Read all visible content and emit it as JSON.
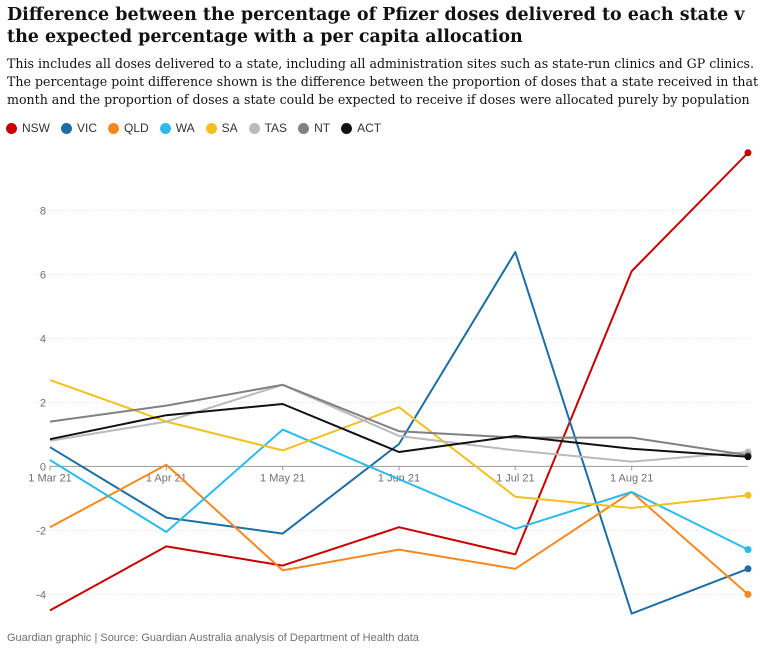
{
  "header": {
    "title": "Difference between the percentage of Pfizer doses delivered to each state v the expected percentage with a per capita allocation",
    "subtitle": "This includes all doses delivered to a state, including all administration sites such as state-run clinics and GP clinics. The percentage point difference shown is the difference between the proportion of doses that a state received in that month and the proportion of doses a state could be expected to receive if doses were allocated purely by population"
  },
  "footer": {
    "source": "Guardian graphic | Source: Guardian Australia analysis of Department of Health data"
  },
  "chart_data": {
    "type": "line",
    "x": [
      "1 Mar 21",
      "1 Apr 21",
      "1 May 21",
      "1 Jun 21",
      "1 Jul 21",
      "1 Aug 21",
      "1 Sep 21"
    ],
    "x_tick_labels": [
      "1 Mar 21",
      "1 Apr 21",
      "1 May 21",
      "1 Jun 21",
      "1 Jul 21",
      "1 Aug 21"
    ],
    "y_ticks": [
      -4,
      -2,
      0,
      2,
      4,
      6,
      8
    ],
    "ylim": [
      -4.8,
      10.2
    ],
    "grid": true,
    "legend_position": "top-left",
    "series": [
      {
        "name": "NSW",
        "color": "#c70000",
        "values": [
          -4.5,
          -2.5,
          -3.1,
          -1.9,
          -2.75,
          6.1,
          9.8
        ]
      },
      {
        "name": "VIC",
        "color": "#1c6ea4",
        "values": [
          0.6,
          -1.6,
          -2.1,
          0.7,
          6.7,
          -4.6,
          -3.2
        ]
      },
      {
        "name": "QLD",
        "color": "#f5891f",
        "values": [
          -1.9,
          0.05,
          -3.25,
          -2.6,
          -3.2,
          -0.8,
          -4.0
        ]
      },
      {
        "name": "WA",
        "color": "#2abbec",
        "values": [
          0.2,
          -2.05,
          1.15,
          -0.4,
          -1.95,
          -0.8,
          -2.6
        ]
      },
      {
        "name": "SA",
        "color": "#f2c11d",
        "values": [
          2.7,
          1.4,
          0.5,
          1.85,
          -0.95,
          -1.3,
          -0.9
        ]
      },
      {
        "name": "TAS",
        "color": "#bababa",
        "values": [
          0.8,
          1.4,
          2.55,
          0.95,
          0.5,
          0.15,
          0.45
        ]
      },
      {
        "name": "NT",
        "color": "#808080",
        "values": [
          1.4,
          1.9,
          2.55,
          1.1,
          0.9,
          0.9,
          0.35
        ]
      },
      {
        "name": "ACT",
        "color": "#111111",
        "values": [
          0.85,
          1.6,
          1.95,
          0.45,
          0.95,
          0.55,
          0.3
        ]
      }
    ]
  }
}
